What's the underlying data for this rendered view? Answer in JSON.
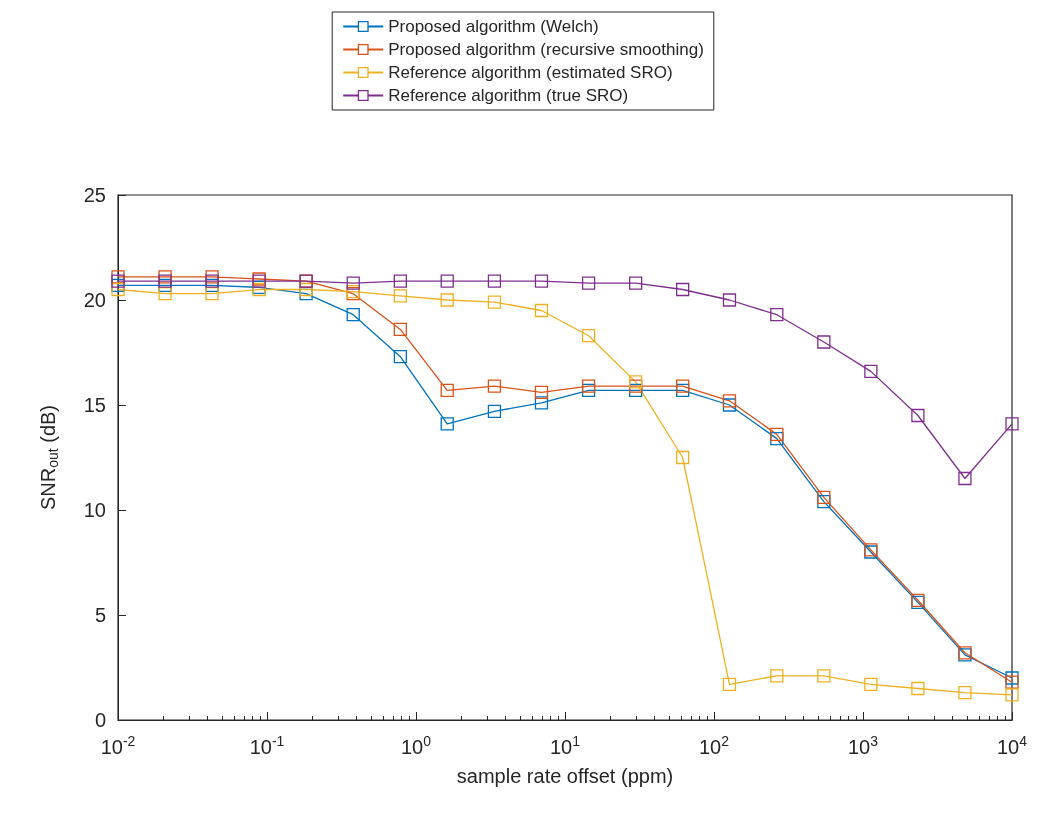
{
  "chart_data": {
    "type": "line",
    "xlabel": "sample rate offset (ppm)",
    "ylabel": "SNR$_{out}$ (dB)",
    "x": [
      0.01,
      0.0207,
      0.0428,
      0.0886,
      0.183,
      0.379,
      0.785,
      1.62,
      3.36,
      6.95,
      14.4,
      29.8,
      61.6,
      127,
      264,
      546,
      1129,
      2336,
      4833,
      10000
    ],
    "series": [
      {
        "name": "Proposed algorithm (Welch)",
        "color": "#0072bd",
        "values": [
          20.7,
          20.7,
          20.7,
          20.6,
          20.3,
          19.3,
          17.3,
          14.1,
          14.7,
          15.1,
          15.7,
          15.7,
          15.7,
          15.0,
          13.4,
          10.4,
          8.0,
          5.6,
          3.1,
          2.0
        ]
      },
      {
        "name": "Proposed algorithm (recursive smoothing)",
        "color": "#d95319",
        "values": [
          21.1,
          21.1,
          21.1,
          21.0,
          20.9,
          20.3,
          18.6,
          15.7,
          15.9,
          15.6,
          15.9,
          15.9,
          15.9,
          15.2,
          13.6,
          10.6,
          8.1,
          5.7,
          3.2,
          1.8
        ]
      },
      {
        "name": "Reference algorithm (estimated SRO)",
        "color": "#edb120",
        "values": [
          20.5,
          20.3,
          20.3,
          20.5,
          20.5,
          20.4,
          20.2,
          20.0,
          19.9,
          19.5,
          18.3,
          16.1,
          12.5,
          1.7,
          2.1,
          2.1,
          1.7,
          1.5,
          1.3,
          1.2
        ]
      },
      {
        "name": "Reference algorithm (true SRO)",
        "color": "#7e2f8e",
        "values": [
          20.9,
          20.9,
          20.9,
          20.9,
          20.9,
          20.8,
          20.9,
          20.9,
          20.9,
          20.9,
          20.8,
          20.8,
          20.5,
          20.0,
          19.3,
          18.0,
          16.6,
          14.5,
          11.5,
          14.1
        ]
      }
    ],
    "xlim": [
      0.01,
      10000
    ],
    "ylim": [
      0,
      25
    ],
    "xticks": [
      {
        "value": 0.01,
        "label": "10$^{-2}$"
      },
      {
        "value": 0.1,
        "label": "10$^{-1}$"
      },
      {
        "value": 1,
        "label": "10$^{0}$"
      },
      {
        "value": 10,
        "label": "10$^{1}$"
      },
      {
        "value": 100,
        "label": "10$^{2}$"
      },
      {
        "value": 1000,
        "label": "10$^{3}$"
      },
      {
        "value": 10000,
        "label": "10$^{4}$"
      }
    ],
    "yticks": [
      0,
      5,
      10,
      15,
      20,
      25
    ],
    "log": "x",
    "grid": false,
    "legend": "top",
    "marker": "square",
    "line_style": "solid"
  }
}
